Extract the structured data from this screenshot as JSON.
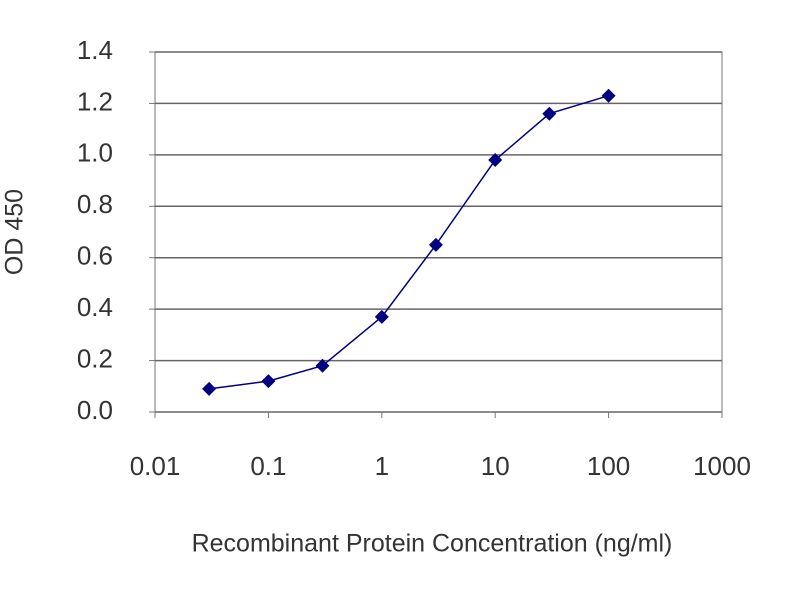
{
  "chart_data": {
    "type": "line",
    "x_scale": "log",
    "xlabel": "Recombinant Protein Concentration (ng/ml)",
    "ylabel": "OD 450",
    "x": [
      0.03,
      0.1,
      0.3,
      1,
      3,
      10,
      30,
      100
    ],
    "series": [
      {
        "color": "#000080",
        "values": [
          0.09,
          0.12,
          0.18,
          0.37,
          0.65,
          0.98,
          1.16,
          1.23
        ]
      }
    ],
    "xlim": [
      0.01,
      1000
    ],
    "xticks": [
      0.01,
      0.1,
      1,
      10,
      100,
      1000
    ],
    "ylim": [
      0,
      1.4
    ],
    "yticks": [
      {
        "value": 0,
        "label": "0.0"
      },
      0.2,
      0.4,
      0.6,
      0.8,
      {
        "value": 1,
        "label": "1.0"
      },
      1.2,
      1.4
    ],
    "grid": true
  }
}
